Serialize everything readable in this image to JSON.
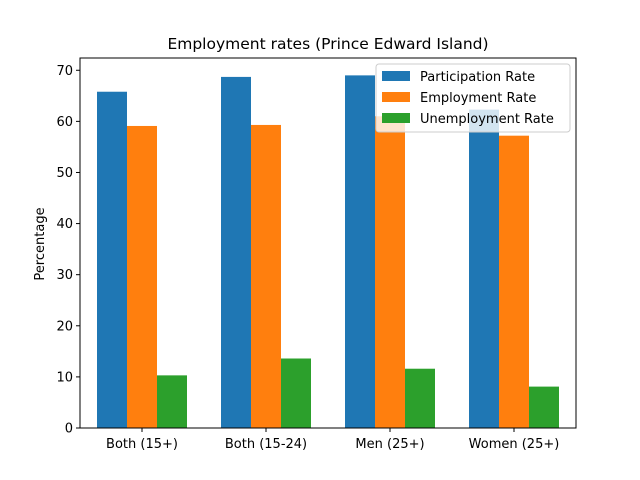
{
  "chart_data": {
    "type": "bar",
    "title": "Employment rates (Prince Edward Island)",
    "xlabel": "",
    "ylabel": "Percentage",
    "categories": [
      "Both (15+)",
      "Both (15-24)",
      "Men (25+)",
      "Women (25+)"
    ],
    "series": [
      {
        "name": "Participation Rate",
        "color": "#1f77b4",
        "values": [
          65.8,
          68.7,
          69.0,
          62.3
        ]
      },
      {
        "name": "Employment Rate",
        "color": "#ff7f0e",
        "values": [
          59.1,
          59.3,
          61.0,
          57.2
        ]
      },
      {
        "name": "Unemployment Rate",
        "color": "#2ca02c",
        "values": [
          10.3,
          13.6,
          11.6,
          8.1
        ]
      }
    ],
    "ylim": [
      0,
      72.4
    ],
    "yticks": [
      0,
      10,
      20,
      30,
      40,
      50,
      60,
      70
    ],
    "legend": "top-right",
    "grid": false
  }
}
